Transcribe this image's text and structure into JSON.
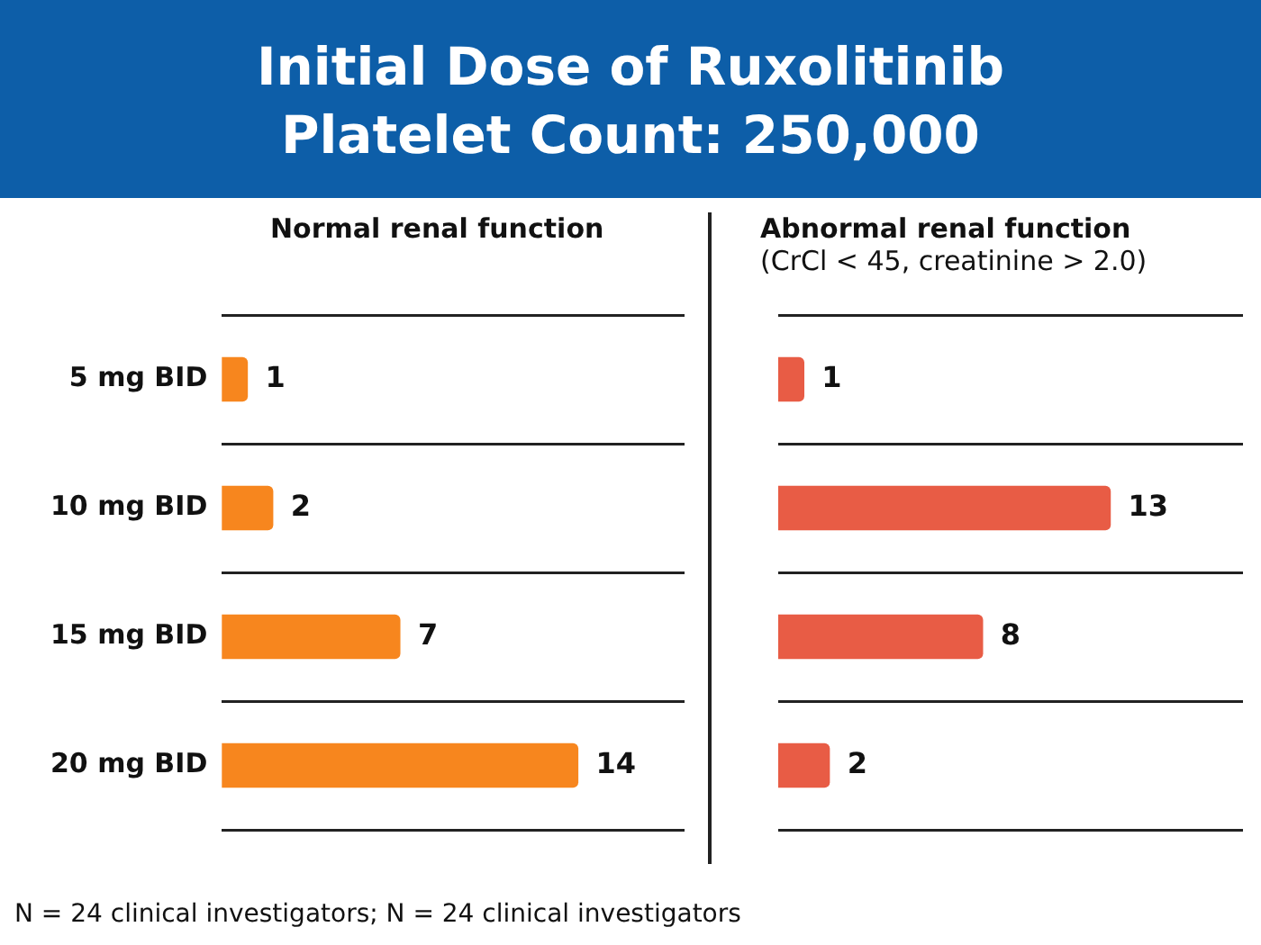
{
  "chart_data": [
    {
      "type": "bar",
      "orientation": "horizontal",
      "title": "Initial Dose of Ruxolitinib",
      "subtitle": "Platelet Count: 250,000",
      "categories": [
        "5 mg BID",
        "10 mg BID",
        "15 mg BID",
        "20 mg BID"
      ],
      "series": [
        {
          "name": "Normal renal function",
          "color": "#f7861e",
          "values": [
            1,
            2,
            7,
            14
          ]
        }
      ],
      "data_labels": true,
      "grid": "y",
      "annotations": [
        "N = 24 clinical investigators; N = 24 clinical investigators"
      ]
    },
    {
      "type": "bar",
      "orientation": "horizontal",
      "categories": [
        null,
        null,
        null,
        null
      ],
      "series": [
        {
          "name": "Abnormal renal function\n(CrCl < 45, creatinine > 2.0)",
          "color": "#e85c45",
          "values": [
            1,
            13,
            8,
            2
          ]
        }
      ],
      "data_labels": true,
      "grid": "y"
    }
  ]
}
